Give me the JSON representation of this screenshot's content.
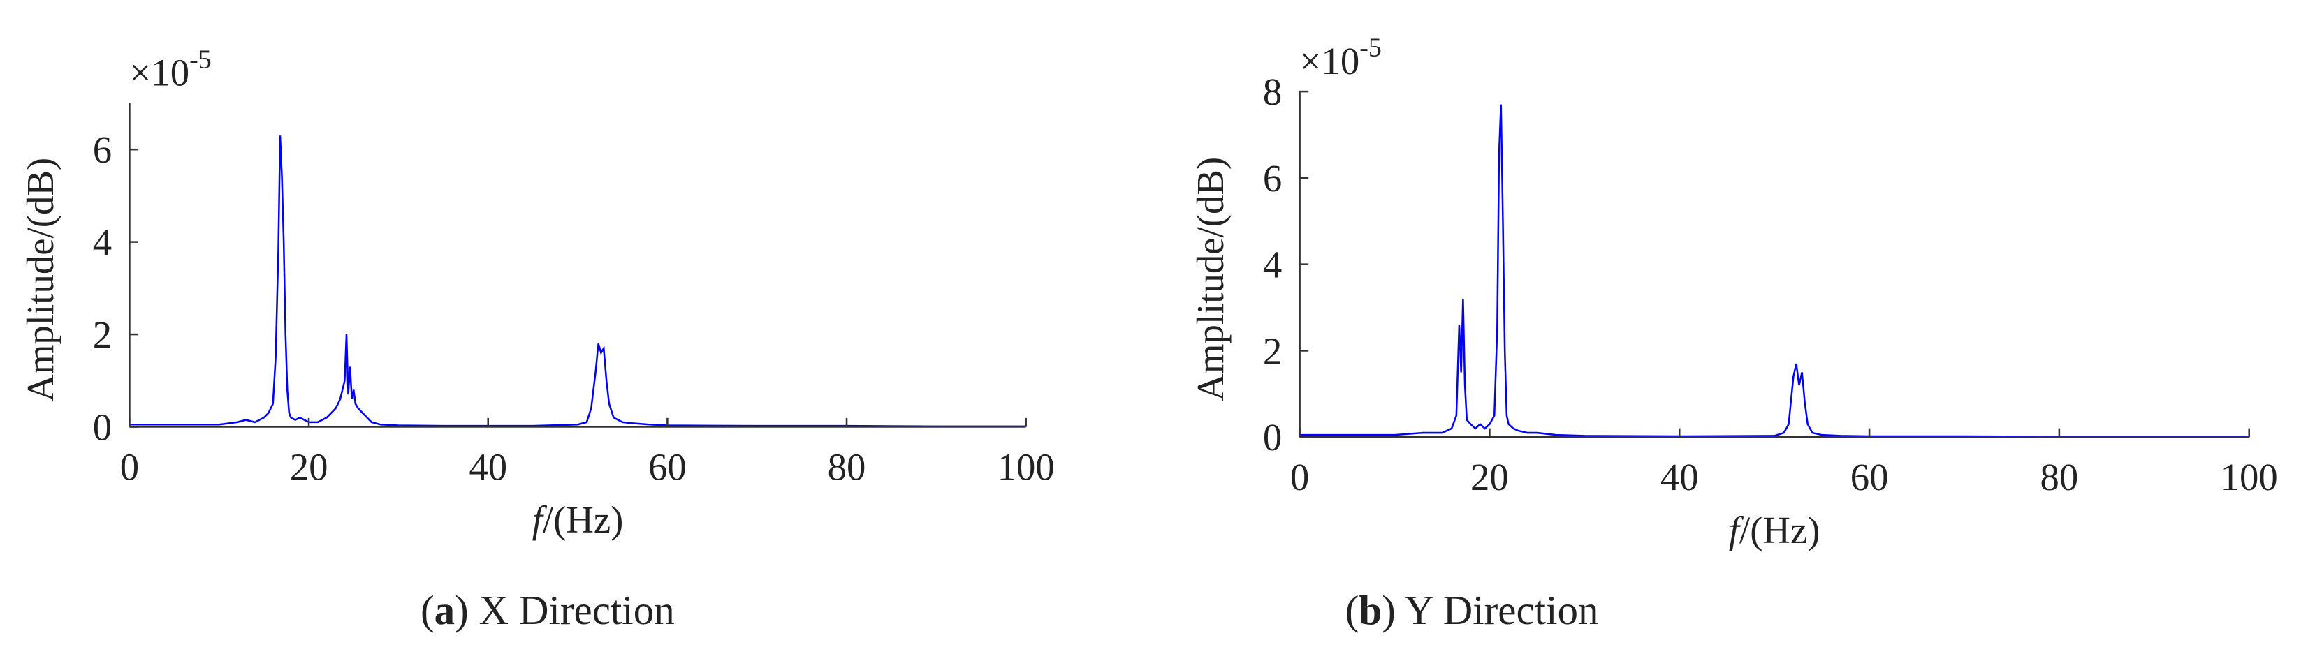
{
  "chart_data": [
    {
      "type": "line",
      "ylabel": "Amplitude/(dB)",
      "y_multiplier": "×10",
      "y_exponent": "-5",
      "xlabel_var": "f",
      "xlabel_unit": "/(Hz)",
      "caption": [
        "(",
        "a",
        ") X Direction"
      ],
      "xlim": [
        0,
        100
      ],
      "xticks": [
        0,
        20,
        40,
        60,
        80,
        100
      ],
      "ylim": [
        0,
        7
      ],
      "yticks": [
        0,
        2,
        4,
        6
      ],
      "x": [
        0,
        5,
        10,
        12,
        13,
        14,
        15,
        15.5,
        16,
        16.3,
        16.6,
        16.8,
        17,
        17.2,
        17.4,
        17.6,
        17.8,
        18,
        18.5,
        19,
        20,
        21,
        22,
        22.5,
        23,
        23.5,
        24,
        24.2,
        24.4,
        24.6,
        24.8,
        25,
        25.2,
        25.5,
        26,
        26.5,
        27,
        28,
        30,
        35,
        40,
        45,
        50,
        51,
        51.5,
        52,
        52.3,
        52.6,
        52.9,
        53.2,
        53.5,
        54,
        55,
        56,
        58,
        60,
        70,
        80,
        90,
        100
      ],
      "series": [
        {
          "color": "#0000ff",
          "values": [
            0.05,
            0.05,
            0.05,
            0.1,
            0.15,
            0.1,
            0.2,
            0.3,
            0.5,
            1.5,
            3.8,
            6.3,
            5.4,
            4,
            2,
            0.8,
            0.3,
            0.2,
            0.15,
            0.2,
            0.1,
            0.1,
            0.2,
            0.3,
            0.4,
            0.6,
            1,
            2.0,
            0.7,
            1.3,
            0.6,
            0.8,
            0.5,
            0.4,
            0.3,
            0.2,
            0.1,
            0.05,
            0.03,
            0.02,
            0.02,
            0.02,
            0.05,
            0.1,
            0.4,
            1.2,
            1.8,
            1.6,
            1.7,
            1.0,
            0.5,
            0.2,
            0.1,
            0.08,
            0.05,
            0.03,
            0.02,
            0.02,
            0.01,
            0.01
          ]
        }
      ]
    },
    {
      "type": "line",
      "ylabel": "Amplitude/(dB)",
      "y_multiplier": "×10",
      "y_exponent": "-5",
      "xlabel_var": "f",
      "xlabel_unit": "/(Hz)",
      "caption": [
        "(",
        "b",
        ") Y Direction"
      ],
      "xlim": [
        0,
        100
      ],
      "xticks": [
        0,
        20,
        40,
        60,
        80,
        100
      ],
      "ylim": [
        0,
        8
      ],
      "yticks": [
        0,
        2,
        4,
        6,
        8
      ],
      "x": [
        0,
        5,
        10,
        13,
        15,
        16,
        16.5,
        16.8,
        17,
        17.2,
        17.4,
        17.6,
        18,
        18.5,
        19,
        19.5,
        20,
        20.5,
        20.8,
        21,
        21.2,
        21.4,
        21.6,
        21.8,
        22,
        22.5,
        23,
        24,
        25,
        27,
        30,
        40,
        50,
        51,
        51.5,
        52,
        52.3,
        52.6,
        52.9,
        53.2,
        53.5,
        54,
        55,
        57,
        60,
        70,
        80,
        90,
        100
      ],
      "series": [
        {
          "color": "#0000ff",
          "values": [
            0.05,
            0.05,
            0.05,
            0.1,
            0.1,
            0.2,
            0.5,
            2.6,
            1.5,
            3.2,
            1.2,
            0.4,
            0.3,
            0.2,
            0.3,
            0.2,
            0.3,
            0.5,
            2.5,
            6.6,
            7.7,
            5,
            2,
            0.5,
            0.3,
            0.2,
            0.15,
            0.1,
            0.1,
            0.05,
            0.03,
            0.02,
            0.03,
            0.1,
            0.3,
            1.4,
            1.7,
            1.2,
            1.5,
            0.8,
            0.3,
            0.1,
            0.05,
            0.03,
            0.02,
            0.02,
            0.01,
            0.01,
            0.01
          ]
        }
      ]
    }
  ]
}
